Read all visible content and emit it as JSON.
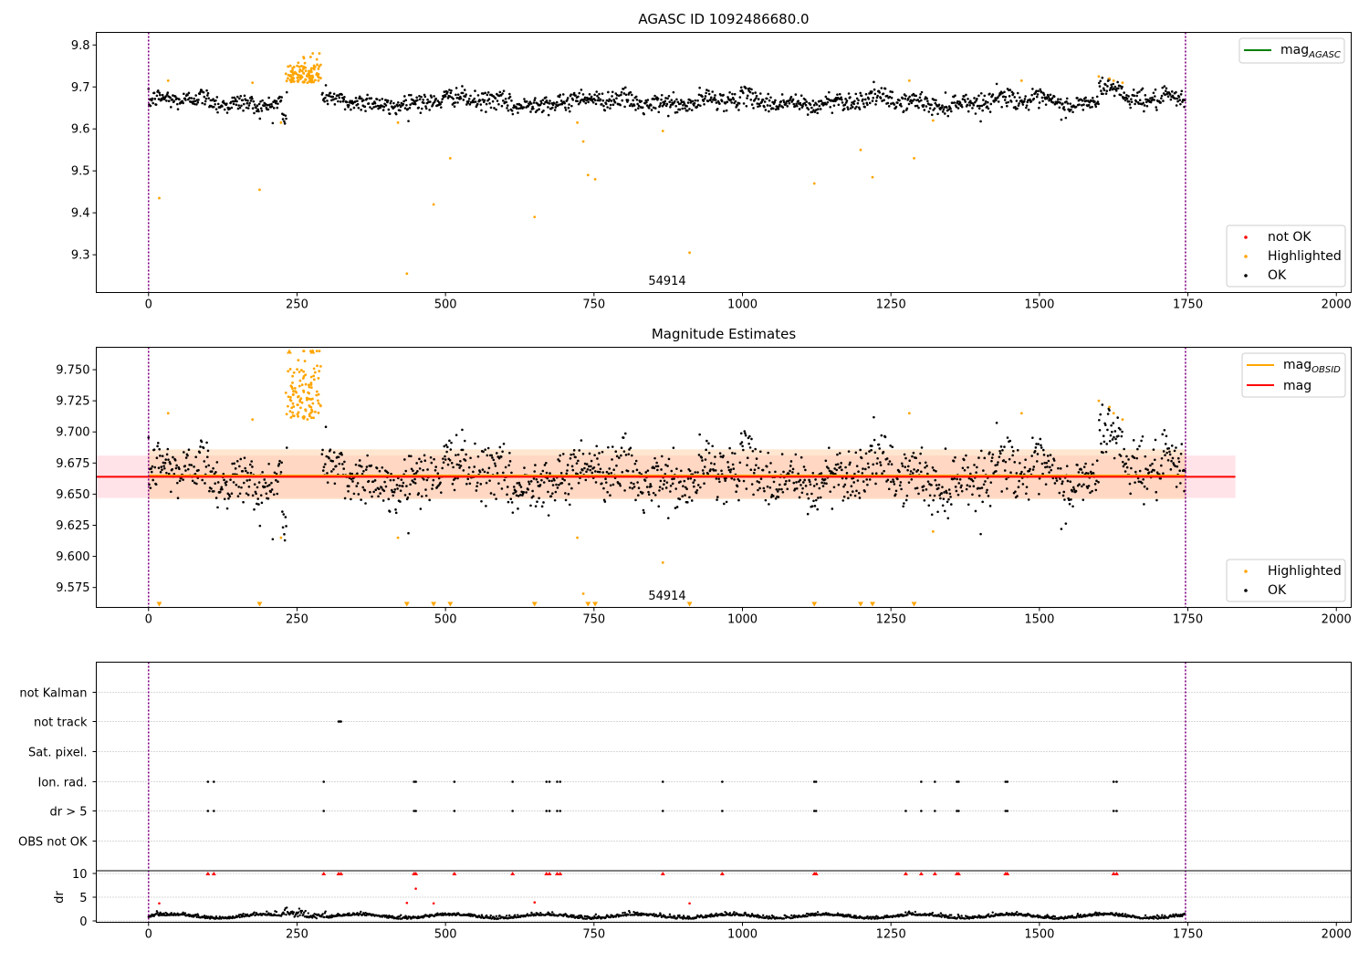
{
  "colors": {
    "ok": "#000000",
    "highlighted": "#ffa500",
    "not_ok": "#ff0000",
    "agasc_line": "#008000",
    "obsid_line": "#ffa500",
    "mag_line": "#ff0000",
    "vline": "#800080",
    "grid": "#b0b0b0"
  },
  "chart_data": [
    {
      "type": "scatter",
      "title": "AGASC ID 1092486680.0",
      "xlim": [
        -88,
        2025
      ],
      "ylim": [
        9.21,
        9.83
      ],
      "xticks": [
        0,
        250,
        500,
        750,
        1000,
        1250,
        1500,
        1750,
        2000
      ],
      "yticks": [
        9.3,
        9.4,
        9.5,
        9.6,
        9.7,
        9.8
      ],
      "vlines": [
        0,
        1746
      ],
      "obsid_annotation": {
        "label": "54914",
        "x": 872
      },
      "legend_upper": [
        {
          "name": "mag",
          "sub": "AGASC",
          "color": "#008000"
        }
      ],
      "legend_lower": [
        {
          "name": "not OK",
          "color": "#ff0000"
        },
        {
          "name": "Highlighted",
          "color": "#ffa500"
        },
        {
          "name": "OK",
          "color": "#000000"
        }
      ],
      "series": [
        {
          "name": "OK",
          "color": "#000000",
          "x_range": [
            0,
            1745
          ],
          "n_points": 1620,
          "baseline": 9.665,
          "scatter": 0.011,
          "features": [
            {
              "x": [
                225,
                232
              ],
              "y": 9.625
            },
            {
              "x": [
                1600,
                1640
              ],
              "y": 9.7
            }
          ]
        },
        {
          "name": "Highlighted",
          "cluster": {
            "x": [
              230,
              290
            ],
            "y": [
              9.71,
              9.78
            ],
            "n": 110
          },
          "x": [
            18,
            33,
            175,
            187,
            223,
            278,
            420,
            435,
            480,
            508,
            650,
            722,
            732,
            740,
            752,
            866,
            911,
            1121,
            1199,
            1219,
            1281,
            1289,
            1321,
            1470,
            1600,
            1618,
            1625,
            1640
          ],
          "y": [
            9.435,
            9.715,
            9.71,
            9.455,
            9.615,
            9.745,
            9.615,
            9.255,
            9.42,
            9.53,
            9.39,
            9.615,
            9.57,
            9.49,
            9.48,
            9.595,
            9.305,
            9.47,
            9.55,
            9.485,
            9.715,
            9.53,
            9.62,
            9.715,
            9.725,
            9.72,
            9.715,
            9.71
          ]
        }
      ]
    },
    {
      "type": "scatter",
      "title": "Magnitude Estimates",
      "xlim": [
        -88,
        2025
      ],
      "ylim": [
        9.559,
        9.768
      ],
      "xticks": [
        0,
        250,
        500,
        750,
        1000,
        1250,
        1500,
        1750,
        2000
      ],
      "yticks": [
        9.575,
        9.6,
        9.625,
        9.65,
        9.675,
        9.7,
        9.725,
        9.75
      ],
      "ytick_labels": [
        "9.575",
        "9.600",
        "9.625",
        "9.650",
        "9.675",
        "9.700",
        "9.725",
        "9.750"
      ],
      "vlines": [
        0,
        1746
      ],
      "obsid_annotation": {
        "label": "54914",
        "x": 872
      },
      "mag_obsid": {
        "x": [
          0,
          1746
        ],
        "y": 9.665,
        "band": [
          9.646,
          9.686
        ]
      },
      "mag": {
        "x": [
          -88,
          1830
        ],
        "y": 9.664,
        "band": [
          9.647,
          9.681
        ]
      },
      "legend_upper": [
        {
          "name": "mag",
          "sub": "OBSID",
          "color": "#ffa500"
        },
        {
          "name": "mag",
          "sub": "",
          "color": "#ff0000"
        }
      ],
      "legend_lower": [
        {
          "name": "Highlighted",
          "color": "#ffa500"
        },
        {
          "name": "OK",
          "color": "#000000"
        }
      ],
      "offscale_markers": {
        "low_x": [
          18,
          187,
          435,
          480,
          508,
          650,
          740,
          752,
          911,
          1121,
          1199,
          1219,
          1289
        ],
        "high_x": [
          237,
          276
        ]
      }
    },
    {
      "type": "scatter",
      "title": "",
      "xlim": [
        -88,
        2025
      ],
      "yticks": [
        0,
        5,
        10
      ],
      "ylabel": "dr",
      "xticks": [
        0,
        250,
        500,
        750,
        1000,
        1250,
        1500,
        1750,
        2000
      ],
      "vlines": [
        0,
        1746
      ],
      "flag_rows": [
        "not Kalman",
        "not track",
        "Sat. pixel.",
        "Ion. rad.",
        "dr > 5",
        "OBS not OK"
      ],
      "flags": {
        "not track": [
          320,
          322,
          324
        ],
        "Ion. rad.": [
          100,
          110,
          295,
          447,
          450,
          515,
          613,
          670,
          675,
          688,
          693,
          866,
          966,
          1121,
          1124,
          1301,
          1324,
          1361,
          1364,
          1443,
          1446,
          1625,
          1630
        ],
        "dr > 5": [
          100,
          110,
          295,
          447,
          450,
          515,
          613,
          670,
          675,
          688,
          693,
          866,
          966,
          1121,
          1124,
          1275,
          1301,
          1324,
          1361,
          1364,
          1443,
          1446,
          1625,
          1630
        ]
      },
      "dr_capped_x": [
        100,
        110,
        295,
        320,
        324,
        447,
        450,
        515,
        613,
        670,
        675,
        688,
        693,
        866,
        966,
        1121,
        1124,
        1275,
        1301,
        1324,
        1361,
        1364,
        1443,
        1446,
        1625,
        1630
      ],
      "dr_red_points": {
        "x": [
          18,
          435,
          450,
          480,
          650,
          911
        ],
        "y": [
          3.7,
          3.8,
          6.8,
          3.7,
          3.9,
          3.7
        ]
      }
    }
  ]
}
